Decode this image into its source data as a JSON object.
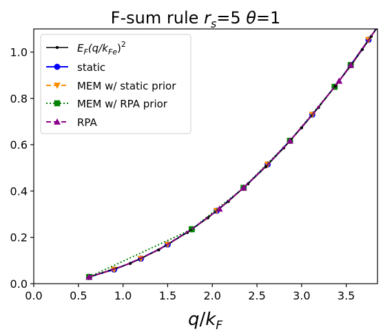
{
  "chart_data": {
    "type": "line",
    "title_parts": [
      "F-sum rule ",
      "r",
      "s",
      "=5 ",
      "θ",
      "=1"
    ],
    "xlabel_parts": [
      "q",
      "/",
      "k",
      "F"
    ],
    "ylabel": "",
    "xlim": [
      0.0,
      3.85
    ],
    "ylim": [
      0.0,
      1.1
    ],
    "xticks": [
      "0.0",
      "0.5",
      "1.0",
      "1.5",
      "2.0",
      "2.5",
      "3.0",
      "3.5"
    ],
    "yticks": [
      "0.0",
      "0.2",
      "0.4",
      "0.6",
      "0.8",
      "1.0"
    ],
    "grid": false,
    "legend_position": "upper-left",
    "series": [
      {
        "name": "E_F(q/k_Fe)^2",
        "legend_parts": [
          "E",
          "F",
          "(q/k",
          "Fe",
          ")",
          "2"
        ],
        "color": "#000000",
        "line_style": "solid",
        "marker": "small-dot",
        "x": [
          0.62,
          1.08,
          1.4,
          1.72,
          1.95,
          2.18,
          2.4,
          2.6,
          2.8,
          3.0,
          3.19,
          3.38,
          3.55,
          3.68,
          3.78,
          3.85
        ],
        "y": [
          0.029,
          0.087,
          0.146,
          0.221,
          0.284,
          0.355,
          0.431,
          0.505,
          0.586,
          0.673,
          0.761,
          0.854,
          0.94,
          1.011,
          1.068,
          1.108
        ]
      },
      {
        "name": "static",
        "color": "#0000ff",
        "line_style": "solid",
        "marker": "circle",
        "x": [
          0.62,
          0.9,
          1.2,
          1.5,
          1.77,
          2.05,
          2.35,
          2.62,
          2.87,
          3.12,
          3.37,
          3.55,
          3.75,
          3.85
        ],
        "y": [
          0.029,
          0.061,
          0.108,
          0.169,
          0.235,
          0.315,
          0.414,
          0.515,
          0.617,
          0.73,
          0.85,
          0.944,
          1.053,
          1.108
        ]
      },
      {
        "name": "MEM w/ static prior",
        "color": "#ff8c00",
        "line_style": "dashed",
        "marker": "triangle-down",
        "x": [
          0.62,
          0.9,
          1.2,
          1.5,
          1.77,
          2.05,
          2.35,
          2.62,
          2.87,
          3.12,
          3.37,
          3.55,
          3.75,
          3.85
        ],
        "y": [
          0.029,
          0.061,
          0.108,
          0.169,
          0.235,
          0.315,
          0.414,
          0.515,
          0.617,
          0.73,
          0.85,
          0.944,
          1.053,
          1.108
        ]
      },
      {
        "name": "MEM w/ RPA prior",
        "color": "#008000",
        "line_style": "dotted",
        "marker": "square",
        "x": [
          0.62,
          1.77,
          2.35,
          2.87,
          3.37,
          3.55,
          3.85
        ],
        "y": [
          0.029,
          0.235,
          0.414,
          0.617,
          0.85,
          0.944,
          1.108
        ]
      },
      {
        "name": "RPA",
        "color": "#8b008b",
        "line_style": "dashed",
        "marker": "triangle-up",
        "x": [
          0.62,
          1.0,
          1.4,
          1.77,
          2.08,
          2.35,
          2.62,
          2.87,
          3.12,
          3.37,
          3.42,
          3.55,
          3.75,
          3.85
        ],
        "y": [
          0.029,
          0.075,
          0.147,
          0.235,
          0.323,
          0.414,
          0.515,
          0.617,
          0.73,
          0.85,
          0.875,
          0.944,
          1.053,
          1.108
        ],
        "marker_x": [
          0.62,
          2.08,
          2.35,
          2.87,
          3.42,
          3.55,
          3.85
        ],
        "marker_y": [
          0.029,
          0.323,
          0.414,
          0.617,
          0.875,
          0.944,
          1.108
        ]
      }
    ]
  }
}
